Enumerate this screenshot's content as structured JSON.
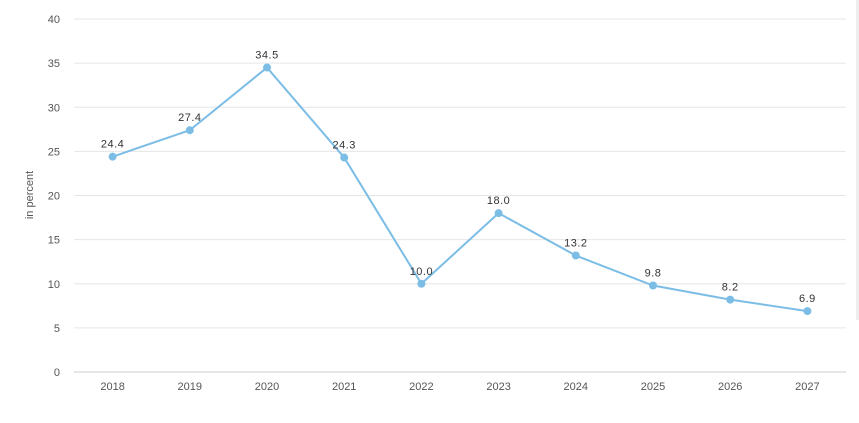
{
  "chart_data": {
    "type": "line",
    "categories": [
      "2018",
      "2019",
      "2020",
      "2021",
      "2022",
      "2023",
      "2024",
      "2025",
      "2026",
      "2027"
    ],
    "series": [
      {
        "values": [
          24.4,
          27.4,
          34.5,
          24.3,
          10.0,
          18.0,
          13.2,
          9.8,
          8.2,
          6.9
        ],
        "labels": [
          "24.4",
          "27.4",
          "34.5",
          "24.3",
          "10.0",
          "18.0",
          "13.2",
          "9.8",
          "8.2",
          "6.9"
        ]
      }
    ],
    "ylabel": "in percent",
    "ylim": [
      0,
      40
    ],
    "yticks": [
      "0",
      "5",
      "10",
      "15",
      "20",
      "25",
      "30",
      "35",
      "40"
    ],
    "grid": true,
    "colors": {
      "line": "#7cbde6",
      "marker": "#7cbde6",
      "grid": "#e6e6e6",
      "axis": "#cccccc"
    }
  }
}
